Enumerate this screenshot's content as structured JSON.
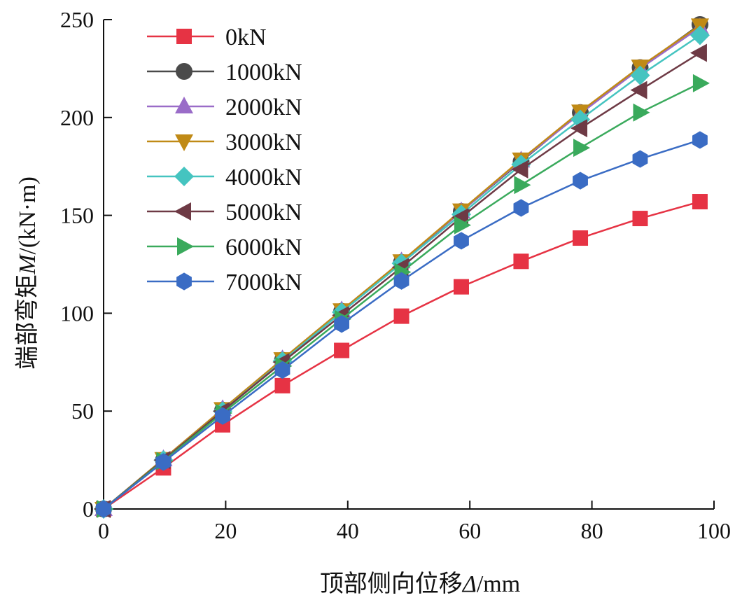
{
  "chart_data": {
    "type": "line",
    "xlabel": "顶部侧向位移Δ/mm",
    "xlabel_parts": [
      "顶部侧向位移",
      "Δ",
      "/mm"
    ],
    "ylabel": "端部弯矩M/(kN·m)",
    "ylabel_parts": [
      "端部弯矩",
      "M",
      "/(kN·m)"
    ],
    "xlim": [
      0,
      100
    ],
    "ylim": [
      0,
      250
    ],
    "xticks": [
      0,
      20,
      40,
      60,
      80,
      100
    ],
    "yticks": [
      0,
      50,
      100,
      150,
      200,
      250
    ],
    "grid": false,
    "legend_position": "top-left",
    "x": [
      0,
      9.8,
      19.5,
      29.3,
      39.0,
      48.8,
      58.6,
      68.4,
      78.1,
      87.9,
      97.7
    ],
    "series": [
      {
        "name": "0kN",
        "marker": "square",
        "color": "#e63344",
        "values": [
          0,
          21,
          43,
          63,
          81,
          98.5,
          113.5,
          126.5,
          138.4,
          148.4,
          157
        ]
      },
      {
        "name": "1000kN",
        "marker": "circle",
        "color": "#4a4a4a",
        "values": [
          0,
          25,
          50.5,
          76,
          101,
          126,
          152,
          177.5,
          202.5,
          225.5,
          247.5
        ]
      },
      {
        "name": "2000kN",
        "marker": "triangle-up",
        "color": "#9a6cc8",
        "values": [
          0,
          25.5,
          51,
          76.5,
          101.5,
          126.5,
          152,
          178,
          202,
          225,
          246
        ]
      },
      {
        "name": "3000kN",
        "marker": "triangle-down",
        "color": "#c08a16",
        "values": [
          0,
          25.5,
          51,
          76.5,
          101.5,
          126.5,
          152.5,
          178.5,
          203,
          226,
          247
        ]
      },
      {
        "name": "4000kN",
        "marker": "diamond",
        "color": "#45c4c0",
        "values": [
          0,
          25,
          50,
          75.5,
          100.5,
          125.5,
          150.5,
          176,
          199,
          221.5,
          242
        ]
      },
      {
        "name": "5000kN",
        "marker": "triangle-left",
        "color": "#6e3a45",
        "values": [
          0,
          25,
          50,
          75,
          99,
          123.5,
          149,
          173.5,
          194.5,
          214,
          233
        ]
      },
      {
        "name": "6000kN",
        "marker": "triangle-right",
        "color": "#3aaa5c",
        "values": [
          0,
          24.5,
          49,
          73,
          97,
          121,
          145,
          165.5,
          184.5,
          202.5,
          217.5
        ]
      },
      {
        "name": "7000kN",
        "marker": "hexagon",
        "color": "#3a6cc4",
        "values": [
          0,
          24,
          47.5,
          71,
          94.5,
          116.5,
          137,
          153.8,
          167.7,
          178.8,
          188.5
        ]
      }
    ]
  }
}
